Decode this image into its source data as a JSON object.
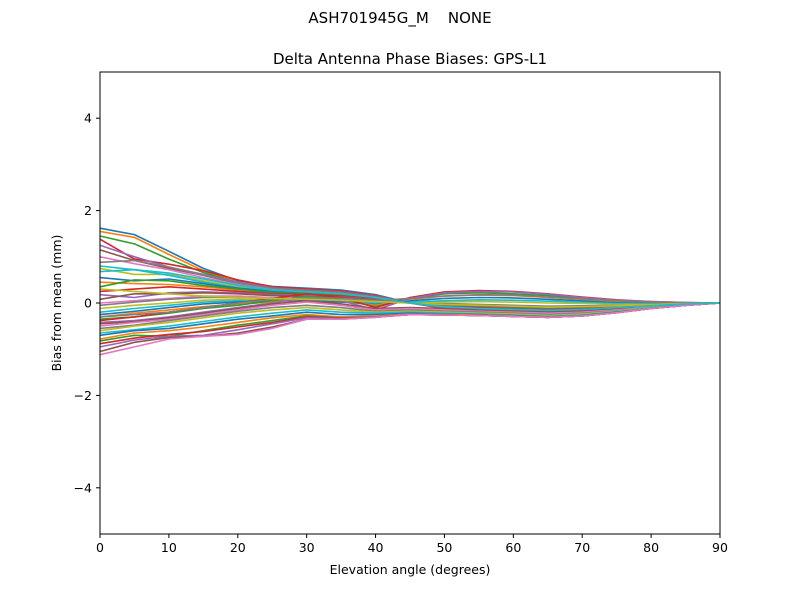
{
  "figure": {
    "suptitle": "ASH701945G_M    NONE"
  },
  "chart_data": {
    "type": "line",
    "title": "Delta Antenna Phase Biases: GPS-L1",
    "xlabel": "Elevation angle (degrees)",
    "ylabel": "Bias from mean (mm)",
    "xlim": [
      0,
      90
    ],
    "ylim": [
      -5,
      5
    ],
    "xticks": [
      0,
      10,
      20,
      30,
      40,
      50,
      60,
      70,
      80,
      90
    ],
    "yticks": [
      -4,
      -2,
      0,
      2,
      4
    ],
    "ytick_labels": [
      "−4",
      "−2",
      "0",
      "2",
      "4"
    ],
    "grid": false,
    "legend": "none",
    "x": [
      0,
      5,
      10,
      15,
      20,
      25,
      30,
      35,
      40,
      45,
      50,
      55,
      60,
      65,
      70,
      75,
      80,
      85,
      90
    ],
    "palette": [
      "#1f77b4",
      "#ff7f0e",
      "#2ca02c",
      "#d62728",
      "#9467bd",
      "#8c564b",
      "#e377c2",
      "#7f7f7f",
      "#bcbd22",
      "#17becf"
    ],
    "series": [
      {
        "values": [
          1.62,
          1.48,
          1.12,
          0.75,
          0.48,
          0.36,
          0.32,
          0.28,
          0.18,
          0.0,
          -0.12,
          -0.16,
          -0.18,
          -0.2,
          -0.18,
          -0.14,
          -0.08,
          -0.03,
          0.0
        ]
      },
      {
        "values": [
          1.55,
          1.42,
          1.05,
          0.7,
          0.45,
          0.34,
          0.3,
          0.26,
          0.16,
          0.0,
          -0.12,
          -0.16,
          -0.18,
          -0.2,
          -0.18,
          -0.14,
          -0.08,
          -0.03,
          0.0
        ]
      },
      {
        "values": [
          1.45,
          1.28,
          0.95,
          0.66,
          0.44,
          0.33,
          0.3,
          0.25,
          0.15,
          0.0,
          -0.11,
          -0.15,
          -0.17,
          -0.19,
          -0.17,
          -0.13,
          -0.08,
          -0.03,
          0.0
        ]
      },
      {
        "values": [
          1.38,
          0.95,
          0.84,
          0.7,
          0.5,
          0.35,
          0.3,
          0.26,
          0.16,
          0.0,
          -0.11,
          -0.15,
          -0.17,
          -0.19,
          -0.17,
          -0.13,
          -0.08,
          -0.03,
          0.0
        ]
      },
      {
        "values": [
          1.25,
          1.0,
          0.78,
          0.62,
          0.45,
          0.33,
          0.28,
          0.24,
          0.15,
          0.0,
          -0.1,
          -0.14,
          -0.16,
          -0.18,
          -0.16,
          -0.12,
          -0.07,
          -0.03,
          0.0
        ]
      },
      {
        "values": [
          1.15,
          0.92,
          0.75,
          0.6,
          0.42,
          0.32,
          0.27,
          0.23,
          0.14,
          0.0,
          -0.1,
          -0.14,
          -0.16,
          -0.18,
          -0.16,
          -0.12,
          -0.07,
          -0.03,
          0.0
        ]
      },
      {
        "values": [
          1.0,
          0.85,
          0.72,
          0.55,
          0.4,
          0.3,
          0.26,
          0.22,
          0.13,
          0.0,
          -0.09,
          -0.13,
          -0.15,
          -0.17,
          -0.15,
          -0.11,
          -0.07,
          -0.02,
          0.0
        ]
      },
      {
        "values": [
          0.88,
          0.92,
          0.78,
          0.6,
          0.43,
          0.32,
          0.27,
          0.22,
          0.13,
          0.0,
          -0.09,
          -0.13,
          -0.15,
          -0.17,
          -0.15,
          -0.11,
          -0.07,
          -0.02,
          0.0
        ]
      },
      {
        "values": [
          0.75,
          0.62,
          0.62,
          0.48,
          0.35,
          0.27,
          0.24,
          0.2,
          0.12,
          0.0,
          -0.08,
          -0.12,
          -0.14,
          -0.16,
          -0.14,
          -0.1,
          -0.06,
          -0.02,
          0.0
        ]
      },
      {
        "values": [
          0.68,
          0.72,
          0.6,
          0.45,
          0.33,
          0.26,
          0.23,
          0.2,
          0.12,
          0.0,
          -0.08,
          -0.12,
          -0.14,
          -0.16,
          -0.14,
          -0.1,
          -0.06,
          -0.02,
          0.0
        ]
      },
      {
        "values": [
          0.55,
          0.48,
          0.52,
          0.42,
          0.32,
          0.25,
          0.22,
          0.19,
          0.11,
          0.0,
          -0.07,
          -0.11,
          -0.13,
          -0.15,
          -0.13,
          -0.1,
          -0.06,
          -0.02,
          0.0
        ]
      },
      {
        "values": [
          0.45,
          0.42,
          0.4,
          0.35,
          0.28,
          0.22,
          0.2,
          0.17,
          0.1,
          0.0,
          -0.06,
          -0.1,
          -0.12,
          -0.14,
          -0.12,
          -0.09,
          -0.05,
          -0.02,
          0.0
        ]
      },
      {
        "values": [
          0.35,
          0.5,
          0.48,
          0.38,
          0.3,
          0.23,
          0.2,
          0.17,
          0.1,
          0.0,
          -0.05,
          -0.09,
          -0.11,
          -0.13,
          -0.12,
          -0.09,
          -0.05,
          -0.02,
          0.0
        ]
      },
      {
        "values": [
          0.25,
          0.3,
          0.35,
          0.3,
          0.25,
          0.2,
          0.18,
          0.15,
          0.09,
          0.0,
          -0.05,
          -0.08,
          -0.1,
          -0.12,
          -0.11,
          -0.08,
          -0.05,
          -0.02,
          0.0
        ]
      },
      {
        "values": [
          0.18,
          0.12,
          0.22,
          0.24,
          0.22,
          0.18,
          0.16,
          0.13,
          0.08,
          0.0,
          -0.04,
          -0.07,
          -0.09,
          -0.11,
          -0.1,
          -0.07,
          -0.04,
          -0.01,
          0.0
        ]
      },
      {
        "values": [
          0.08,
          0.2,
          0.2,
          0.22,
          0.2,
          0.16,
          0.14,
          0.12,
          0.07,
          0.0,
          -0.03,
          -0.06,
          -0.08,
          -0.1,
          -0.09,
          -0.07,
          -0.04,
          -0.01,
          0.0
        ]
      },
      {
        "values": [
          0.0,
          0.05,
          0.1,
          0.15,
          0.15,
          0.12,
          0.1,
          0.08,
          0.05,
          0.0,
          -0.02,
          -0.04,
          -0.06,
          -0.08,
          -0.07,
          -0.05,
          -0.03,
          -0.01,
          0.0
        ]
      },
      {
        "values": [
          -0.05,
          0.02,
          0.08,
          0.12,
          0.12,
          0.1,
          0.08,
          0.06,
          0.04,
          0.0,
          -0.01,
          -0.03,
          -0.05,
          -0.07,
          -0.06,
          -0.05,
          -0.03,
          -0.01,
          0.0
        ]
      },
      {
        "values": [
          -0.12,
          -0.05,
          0.0,
          0.06,
          0.08,
          0.07,
          0.06,
          0.04,
          0.02,
          0.0,
          0.02,
          0.03,
          0.02,
          0.0,
          -0.01,
          -0.02,
          -0.01,
          0.0,
          0.0
        ]
      },
      {
        "values": [
          -0.2,
          -0.12,
          -0.05,
          0.02,
          0.05,
          0.05,
          0.04,
          0.02,
          0.0,
          0.02,
          0.05,
          0.07,
          0.06,
          0.04,
          0.02,
          0.0,
          0.0,
          0.0,
          0.0
        ]
      },
      {
        "values": [
          -0.25,
          -0.18,
          -0.1,
          -0.02,
          0.02,
          0.04,
          0.06,
          0.02,
          -0.03,
          0.05,
          0.1,
          0.12,
          0.11,
          0.08,
          0.05,
          0.02,
          0.01,
          0.0,
          0.0
        ]
      },
      {
        "values": [
          -0.3,
          -0.22,
          -0.15,
          -0.08,
          -0.02,
          0.02,
          0.1,
          0.05,
          -0.05,
          0.08,
          0.15,
          0.17,
          0.16,
          0.12,
          0.08,
          0.04,
          0.02,
          0.0,
          0.0
        ]
      },
      {
        "values": [
          -0.35,
          -0.3,
          -0.22,
          -0.12,
          -0.05,
          0.05,
          0.15,
          0.08,
          -0.08,
          0.1,
          0.2,
          0.22,
          0.2,
          0.16,
          0.1,
          0.05,
          0.02,
          0.0,
          0.0
        ]
      },
      {
        "values": [
          -0.38,
          -0.3,
          -0.2,
          -0.1,
          0.0,
          0.1,
          0.2,
          0.12,
          -0.1,
          0.12,
          0.24,
          0.27,
          0.25,
          0.2,
          0.13,
          0.07,
          0.03,
          0.01,
          0.0
        ]
      },
      {
        "values": [
          -0.42,
          -0.38,
          -0.3,
          -0.2,
          -0.1,
          0.0,
          0.12,
          0.05,
          -0.15,
          0.1,
          0.22,
          0.25,
          0.24,
          0.19,
          0.12,
          0.06,
          0.03,
          0.01,
          0.0
        ]
      },
      {
        "values": [
          -0.45,
          -0.4,
          -0.32,
          -0.22,
          -0.12,
          -0.02,
          0.05,
          -0.02,
          -0.12,
          -0.1,
          -0.12,
          -0.14,
          -0.16,
          -0.18,
          -0.16,
          -0.12,
          -0.07,
          -0.03,
          0.0
        ]
      },
      {
        "values": [
          -0.5,
          -0.42,
          -0.35,
          -0.25,
          -0.15,
          -0.05,
          0.02,
          -0.05,
          -0.15,
          -0.12,
          -0.15,
          -0.18,
          -0.2,
          -0.22,
          -0.2,
          -0.15,
          -0.09,
          -0.04,
          0.0
        ]
      },
      {
        "values": [
          -0.55,
          -0.48,
          -0.38,
          -0.28,
          -0.18,
          -0.1,
          -0.05,
          -0.1,
          -0.18,
          -0.15,
          -0.18,
          -0.2,
          -0.22,
          -0.25,
          -0.22,
          -0.17,
          -0.1,
          -0.04,
          0.0
        ]
      },
      {
        "values": [
          -0.6,
          -0.5,
          -0.42,
          -0.32,
          -0.22,
          -0.15,
          -0.1,
          -0.15,
          -0.2,
          -0.18,
          -0.2,
          -0.22,
          -0.24,
          -0.27,
          -0.24,
          -0.18,
          -0.1,
          -0.04,
          0.0
        ]
      },
      {
        "values": [
          -0.65,
          -0.58,
          -0.5,
          -0.4,
          -0.3,
          -0.22,
          -0.15,
          -0.2,
          -0.22,
          -0.2,
          -0.22,
          -0.24,
          -0.26,
          -0.29,
          -0.26,
          -0.19,
          -0.11,
          -0.04,
          0.0
        ]
      },
      {
        "values": [
          -0.7,
          -0.6,
          -0.55,
          -0.45,
          -0.35,
          -0.28,
          -0.2,
          -0.25,
          -0.25,
          -0.22,
          -0.24,
          -0.25,
          -0.27,
          -0.3,
          -0.27,
          -0.2,
          -0.12,
          -0.05,
          0.0
        ]
      },
      {
        "values": [
          -0.78,
          -0.65,
          -0.6,
          -0.52,
          -0.42,
          -0.32,
          -0.25,
          -0.3,
          -0.28,
          -0.24,
          -0.25,
          -0.26,
          -0.28,
          -0.31,
          -0.28,
          -0.21,
          -0.12,
          -0.05,
          0.0
        ]
      },
      {
        "values": [
          -0.82,
          -0.7,
          -0.72,
          -0.6,
          -0.48,
          -0.38,
          -0.28,
          -0.32,
          -0.3,
          -0.25,
          -0.26,
          -0.27,
          -0.29,
          -0.31,
          -0.28,
          -0.21,
          -0.12,
          -0.05,
          0.0
        ]
      },
      {
        "values": [
          -0.88,
          -0.76,
          -0.68,
          -0.62,
          -0.52,
          -0.42,
          -0.3,
          -0.33,
          -0.3,
          -0.25,
          -0.26,
          -0.27,
          -0.29,
          -0.31,
          -0.28,
          -0.21,
          -0.12,
          -0.05,
          0.0
        ]
      },
      {
        "values": [
          -0.95,
          -0.8,
          -0.72,
          -0.7,
          -0.58,
          -0.45,
          -0.32,
          -0.34,
          -0.3,
          -0.25,
          -0.26,
          -0.27,
          -0.29,
          -0.31,
          -0.28,
          -0.21,
          -0.12,
          -0.05,
          0.0
        ]
      },
      {
        "values": [
          -1.05,
          -0.85,
          -0.75,
          -0.72,
          -0.65,
          -0.52,
          -0.35,
          -0.35,
          -0.31,
          -0.25,
          -0.26,
          -0.27,
          -0.29,
          -0.31,
          -0.28,
          -0.21,
          -0.12,
          -0.05,
          0.0
        ]
      },
      {
        "values": [
          -1.12,
          -0.95,
          -0.78,
          -0.72,
          -0.68,
          -0.55,
          -0.35,
          -0.35,
          -0.31,
          -0.25,
          -0.26,
          -0.27,
          -0.29,
          -0.31,
          -0.28,
          -0.21,
          -0.12,
          -0.05,
          0.0
        ]
      },
      {
        "values": [
          -0.3,
          -0.25,
          -0.2,
          -0.1,
          0.0,
          0.08,
          0.12,
          0.1,
          0.05,
          0.1,
          0.15,
          0.18,
          0.17,
          0.13,
          0.09,
          0.05,
          0.02,
          0.0,
          0.0
        ]
      },
      {
        "values": [
          0.3,
          0.25,
          0.2,
          0.15,
          0.12,
          0.1,
          0.08,
          0.06,
          0.03,
          0.0,
          -0.03,
          -0.05,
          -0.07,
          -0.09,
          -0.08,
          -0.06,
          -0.03,
          -0.01,
          0.0
        ]
      },
      {
        "values": [
          0.8,
          0.72,
          0.65,
          0.52,
          0.38,
          0.28,
          0.24,
          0.2,
          0.12,
          0.0,
          -0.08,
          -0.12,
          -0.14,
          -0.16,
          -0.14,
          -0.1,
          -0.06,
          -0.02,
          0.0
        ]
      }
    ]
  }
}
